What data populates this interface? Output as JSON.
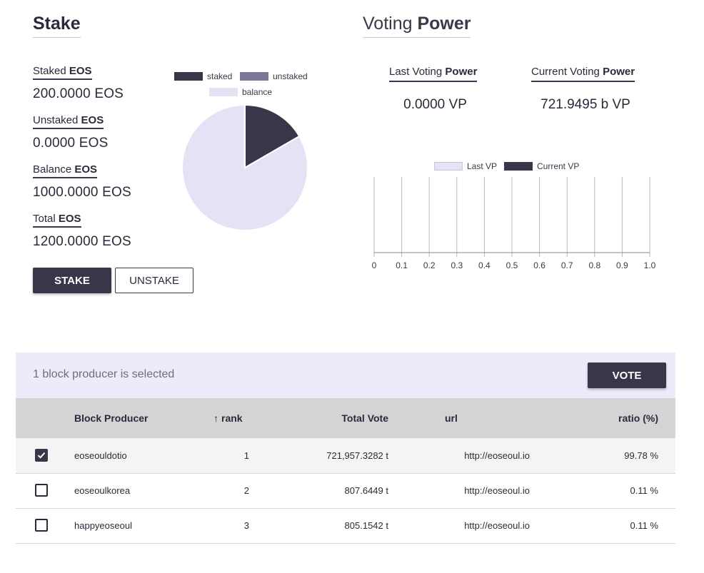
{
  "stake": {
    "title": "Stake",
    "stats": [
      {
        "label_prefix": "Staked ",
        "label_bold": "EOS",
        "value": "200.0000 EOS"
      },
      {
        "label_prefix": "Unstaked ",
        "label_bold": "EOS",
        "value": "0.0000 EOS"
      },
      {
        "label_prefix": "Balance ",
        "label_bold": "EOS",
        "value": "1000.0000 EOS"
      },
      {
        "label_prefix": "Total ",
        "label_bold": "EOS",
        "value": "1200.0000 EOS"
      }
    ],
    "stake_button": "STAKE",
    "unstake_button": "UNSTAKE"
  },
  "pie": {
    "legend": [
      {
        "label": "staked",
        "color": "#383649"
      },
      {
        "label": "unstaked",
        "color": "#7a7896"
      },
      {
        "label": "balance",
        "color": "#e4e3f6"
      }
    ],
    "values": {
      "staked": 200,
      "unstaked": 0,
      "balance": 1000
    }
  },
  "voting_power": {
    "title_prefix": "Voting ",
    "title_bold": "Power",
    "last_label_prefix": "Last Voting ",
    "last_label_bold": "Power",
    "last_value": "0.0000 VP",
    "current_label_prefix": "Current Voting ",
    "current_label_bold": "Power",
    "current_value": "721.9495 b VP"
  },
  "chart_data": {
    "type": "bar",
    "orientation": "horizontal",
    "series": [
      {
        "name": "Last VP",
        "color": "#e4e3f6",
        "values": []
      },
      {
        "name": "Current VP",
        "color": "#383649",
        "values": []
      }
    ],
    "x_ticks": [
      "0",
      "0.1",
      "0.2",
      "0.3",
      "0.4",
      "0.5",
      "0.6",
      "0.7",
      "0.8",
      "0.9",
      "1.0"
    ],
    "xlim": [
      0,
      1.0
    ],
    "grid": true,
    "legend_position": "top"
  },
  "selection": {
    "text": "1 block producer is selected",
    "vote_button": "VOTE"
  },
  "table": {
    "headers": {
      "producer": "Block Producer",
      "rank": "rank",
      "sort_arrow": "↑",
      "total_vote": "Total Vote",
      "url": "url",
      "ratio": "ratio (%)"
    },
    "rows": [
      {
        "checked": true,
        "producer": "eoseouldotio",
        "rank": "1",
        "total_vote": "721,957.3282 t",
        "url": "http://eoseoul.io",
        "ratio": "99.78 %"
      },
      {
        "checked": false,
        "producer": "eoseoulkorea",
        "rank": "2",
        "total_vote": "807.6449 t",
        "url": "http://eoseoul.io",
        "ratio": "0.11 %"
      },
      {
        "checked": false,
        "producer": "happyeoseoul",
        "rank": "3",
        "total_vote": "805.1542 t",
        "url": "http://eoseoul.io",
        "ratio": "0.11 %"
      }
    ]
  }
}
